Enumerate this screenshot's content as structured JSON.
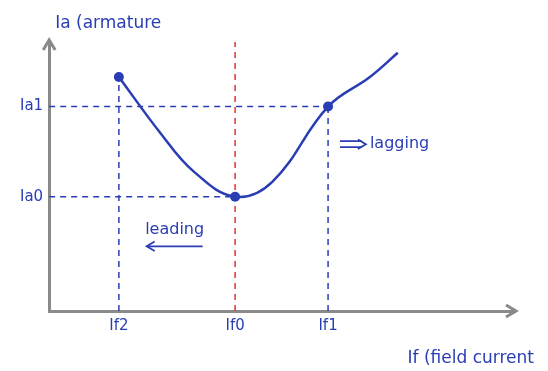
{
  "chart_data": {
    "type": "line",
    "xlabel": "If (field current",
    "ylabel": "Ia (armature",
    "xlim": [
      0,
      10
    ],
    "ylim": [
      0,
      10
    ],
    "xticks": [
      {
        "value": 1.5,
        "label": "If2"
      },
      {
        "value": 4,
        "label": "If0"
      },
      {
        "value": 6,
        "label": "If1"
      }
    ],
    "yticks": [
      {
        "value": 4.25,
        "label": "Ia0"
      },
      {
        "value": 7.6,
        "label": "Ia1"
      }
    ],
    "grid": false,
    "series": [
      {
        "type": "line",
        "color": "#2a3db5",
        "line_style": "solid",
        "x": [
          1.5,
          2.4,
          3.1,
          4,
          4.8,
          6,
          6.9,
          7.5
        ],
        "values": [
          8.7,
          6.6,
          5.2,
          4.25,
          4.8,
          7.6,
          8.7,
          9.6
        ]
      },
      {
        "type": "scatter",
        "color": "#2a3db5",
        "marker": "circle",
        "x": [
          1.5,
          4,
          6
        ],
        "values": [
          8.7,
          4.25,
          7.6
        ]
      },
      {
        "type": "line",
        "color": "#e03030",
        "line_style": "dashed",
        "x": [
          4,
          4
        ],
        "values": [
          0,
          10
        ]
      },
      {
        "type": "line",
        "color": "#2a3db5",
        "line_style": "dashed",
        "x": [
          0,
          6
        ],
        "values": [
          7.6,
          7.6
        ]
      },
      {
        "type": "line",
        "color": "#2a3db5",
        "line_style": "dashed",
        "x": [
          0,
          4
        ],
        "values": [
          4.25,
          4.25
        ]
      },
      {
        "type": "line",
        "color": "#2a3db5",
        "line_style": "dashed",
        "x": [
          1.5,
          1.5
        ],
        "values": [
          0,
          8.7
        ]
      },
      {
        "type": "line",
        "color": "#2a3db5",
        "line_style": "dashed",
        "x": [
          6,
          6
        ],
        "values": [
          0,
          7.6
        ]
      }
    ],
    "annotations": [
      {
        "text": "leading",
        "x": 2.7,
        "y": 3,
        "marker": "left_arrow"
      },
      {
        "text": "lagging",
        "x": 6.9,
        "y": 6.2,
        "marker": "right_arrow"
      }
    ]
  }
}
